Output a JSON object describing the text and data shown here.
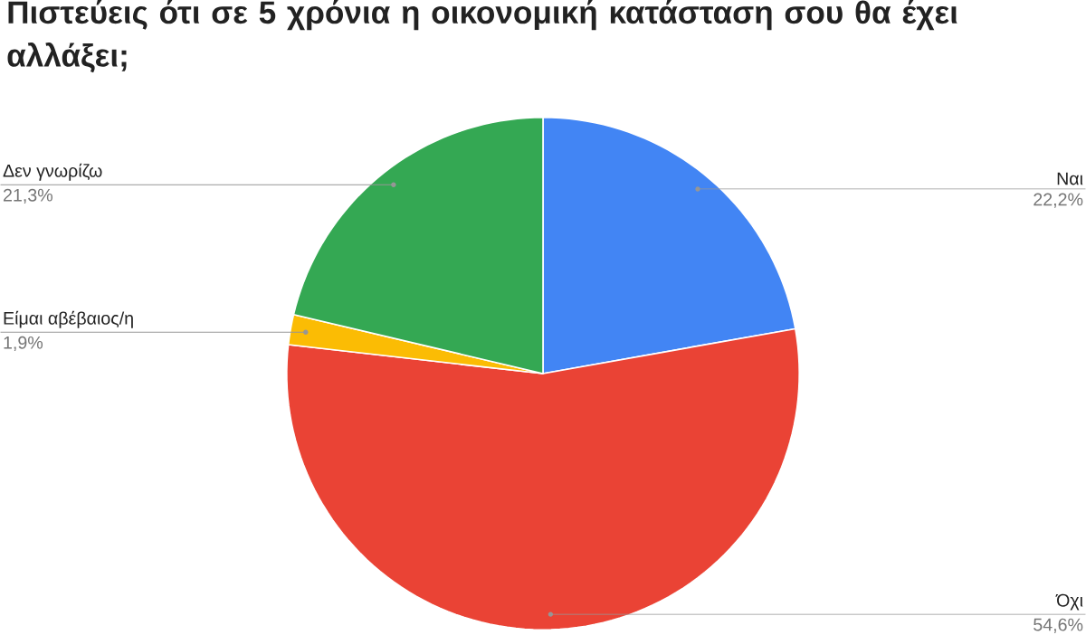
{
  "chart_data": {
    "type": "pie",
    "title": "Πιστεύεις ότι σε 5 χρόνια η οικονομική κατάσταση σου θα έχει αλλάξει;",
    "categories": [
      "Ναι",
      "Όχι",
      "Είμαι αβέβαιος/η",
      "Δεν γνωρίζω"
    ],
    "values": [
      22.2,
      54.6,
      1.9,
      21.3
    ],
    "colors": [
      "#4285f4",
      "#ea4335",
      "#fbbc04",
      "#34a853"
    ],
    "value_labels": [
      "22,2%",
      "54,6%",
      "1,9%",
      "21,3%"
    ]
  }
}
